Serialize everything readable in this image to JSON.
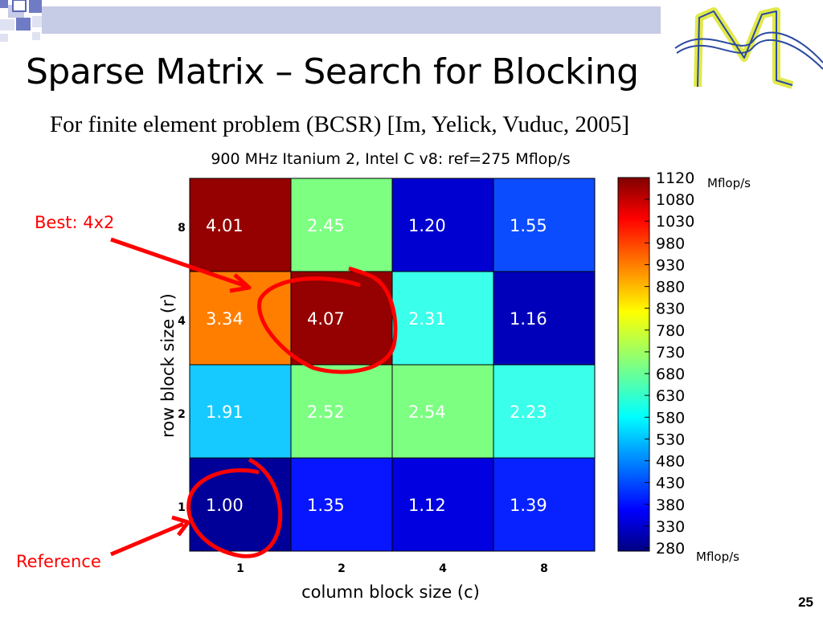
{
  "slide": {
    "title": "Sparse Matrix – Search for Blocking",
    "subtitle": "For finite element problem (BCSR) [Im, Yelick, Vuduc, 2005]",
    "page_number": "25"
  },
  "annotations": {
    "best": "Best: 4x2",
    "reference": "Reference"
  },
  "colors": {
    "annotation_red": "#ff0000",
    "ink": "#000000"
  },
  "chart_data": {
    "type": "heatmap",
    "title": "900 MHz Itanium 2, Intel C v8: ref=275 Mflop/s",
    "xlabel": "column block size (c)",
    "ylabel": "row block size (r)",
    "x_categories": [
      "1",
      "2",
      "4",
      "8"
    ],
    "y_categories": [
      "8",
      "4",
      "2",
      "1"
    ],
    "speedup_grid": [
      [
        4.01,
        2.45,
        1.2,
        1.55
      ],
      [
        3.34,
        4.07,
        2.31,
        1.16
      ],
      [
        1.91,
        2.52,
        2.54,
        2.23
      ],
      [
        1.0,
        1.35,
        1.12,
        1.39
      ]
    ],
    "cell_labels": [
      [
        "4.01",
        "2.45",
        "1.20",
        "1.55"
      ],
      [
        "3.34",
        "4.07",
        "2.31",
        "1.16"
      ],
      [
        "1.91",
        "2.52",
        "2.54",
        "2.23"
      ],
      [
        "1.00",
        "1.35",
        "1.12",
        "1.39"
      ]
    ],
    "cell_colors": [
      [
        "#950000",
        "#7dff82",
        "#0000d0",
        "#0c4cff"
      ],
      [
        "#ff7e00",
        "#950000",
        "#3affea",
        "#0000bb"
      ],
      [
        "#16caff",
        "#7dff82",
        "#7dff82",
        "#3affea"
      ],
      [
        "#000098",
        "#0816ff",
        "#0000e0",
        "#0822ff"
      ]
    ],
    "reference_mflops": 275,
    "colorbar": {
      "range": [
        280,
        1120
      ],
      "tick_labels": [
        "1120",
        "1080",
        "1030",
        "980",
        "930",
        "880",
        "830",
        "780",
        "730",
        "680",
        "630",
        "580",
        "530",
        "480",
        "430",
        "380",
        "330",
        "280"
      ],
      "unit_top": "Mflop/s",
      "unit_bottom": "Mflop/s",
      "colormap": "jet"
    }
  }
}
